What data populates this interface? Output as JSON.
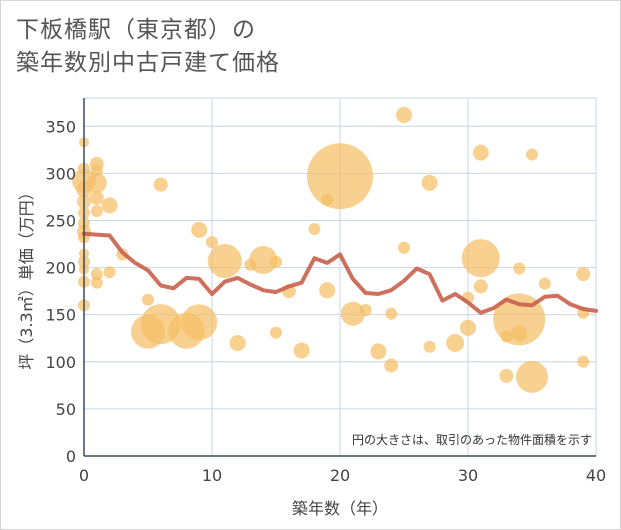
{
  "title_line1": "下板橋駅（東京都）の",
  "title_line2": "築年数別中古戸建て価格",
  "chart_data": {
    "type": "scatter",
    "xlabel": "築年数（年）",
    "ylabel": "坪（3.3㎡）単価（万円）",
    "xlim": [
      0,
      40
    ],
    "ylim": [
      0,
      380
    ],
    "xticks": [
      0,
      10,
      20,
      30,
      40
    ],
    "yticks": [
      0,
      50,
      100,
      150,
      200,
      250,
      300,
      350
    ],
    "annotation": "円の大きさは、取引のあった物件面積を示す",
    "bubble_color": "#f5be64",
    "line_color": "#c8614d",
    "bubbles": [
      {
        "x": 0,
        "y": 333,
        "r": 5
      },
      {
        "x": 0,
        "y": 305,
        "r": 6
      },
      {
        "x": 0,
        "y": 292,
        "r": 12
      },
      {
        "x": 0,
        "y": 283,
        "r": 8
      },
      {
        "x": 0,
        "y": 270,
        "r": 7
      },
      {
        "x": 0,
        "y": 258,
        "r": 6
      },
      {
        "x": 0,
        "y": 247,
        "r": 6
      },
      {
        "x": 0,
        "y": 238,
        "r": 7
      },
      {
        "x": 0,
        "y": 232,
        "r": 6
      },
      {
        "x": 0,
        "y": 215,
        "r": 5
      },
      {
        "x": 0,
        "y": 206,
        "r": 6
      },
      {
        "x": 0,
        "y": 198,
        "r": 5
      },
      {
        "x": 0,
        "y": 185,
        "r": 6
      },
      {
        "x": 0,
        "y": 160,
        "r": 6
      },
      {
        "x": 1,
        "y": 310,
        "r": 7
      },
      {
        "x": 1,
        "y": 303,
        "r": 6
      },
      {
        "x": 1,
        "y": 290,
        "r": 10
      },
      {
        "x": 1,
        "y": 274,
        "r": 7
      },
      {
        "x": 1,
        "y": 260,
        "r": 6
      },
      {
        "x": 1,
        "y": 193,
        "r": 6
      },
      {
        "x": 1,
        "y": 184,
        "r": 6
      },
      {
        "x": 2,
        "y": 266,
        "r": 8
      },
      {
        "x": 2,
        "y": 195,
        "r": 6
      },
      {
        "x": 3,
        "y": 214,
        "r": 6
      },
      {
        "x": 5,
        "y": 166,
        "r": 6
      },
      {
        "x": 5,
        "y": 132,
        "r": 17
      },
      {
        "x": 6,
        "y": 288,
        "r": 7
      },
      {
        "x": 6,
        "y": 140,
        "r": 20
      },
      {
        "x": 8,
        "y": 133,
        "r": 18
      },
      {
        "x": 9,
        "y": 240,
        "r": 8
      },
      {
        "x": 9,
        "y": 142,
        "r": 18
      },
      {
        "x": 10,
        "y": 227,
        "r": 6
      },
      {
        "x": 11,
        "y": 207,
        "r": 17
      },
      {
        "x": 12,
        "y": 120,
        "r": 8
      },
      {
        "x": 13,
        "y": 203,
        "r": 6
      },
      {
        "x": 14,
        "y": 208,
        "r": 14
      },
      {
        "x": 15,
        "y": 206,
        "r": 6
      },
      {
        "x": 15,
        "y": 131,
        "r": 6
      },
      {
        "x": 16,
        "y": 175,
        "r": 7
      },
      {
        "x": 17,
        "y": 112,
        "r": 8
      },
      {
        "x": 18,
        "y": 241,
        "r": 6
      },
      {
        "x": 19,
        "y": 272,
        "r": 6
      },
      {
        "x": 19,
        "y": 176,
        "r": 8
      },
      {
        "x": 20,
        "y": 297,
        "r": 33
      },
      {
        "x": 21,
        "y": 151,
        "r": 12
      },
      {
        "x": 22,
        "y": 155,
        "r": 6
      },
      {
        "x": 23,
        "y": 111,
        "r": 8
      },
      {
        "x": 24,
        "y": 96,
        "r": 7
      },
      {
        "x": 24,
        "y": 151,
        "r": 6
      },
      {
        "x": 25,
        "y": 362,
        "r": 8
      },
      {
        "x": 25,
        "y": 221,
        "r": 6
      },
      {
        "x": 27,
        "y": 290,
        "r": 8
      },
      {
        "x": 27,
        "y": 116,
        "r": 6
      },
      {
        "x": 29,
        "y": 120,
        "r": 9
      },
      {
        "x": 30,
        "y": 136,
        "r": 8
      },
      {
        "x": 30,
        "y": 168,
        "r": 6
      },
      {
        "x": 31,
        "y": 322,
        "r": 8
      },
      {
        "x": 31,
        "y": 210,
        "r": 19
      },
      {
        "x": 31,
        "y": 180,
        "r": 7
      },
      {
        "x": 33,
        "y": 85,
        "r": 7
      },
      {
        "x": 33,
        "y": 127,
        "r": 6
      },
      {
        "x": 34,
        "y": 145,
        "r": 26
      },
      {
        "x": 34,
        "y": 130,
        "r": 8
      },
      {
        "x": 34,
        "y": 199,
        "r": 6
      },
      {
        "x": 35,
        "y": 320,
        "r": 6
      },
      {
        "x": 35,
        "y": 84,
        "r": 16
      },
      {
        "x": 36,
        "y": 183,
        "r": 6
      },
      {
        "x": 39,
        "y": 193,
        "r": 7
      },
      {
        "x": 39,
        "y": 152,
        "r": 6
      },
      {
        "x": 39,
        "y": 100,
        "r": 6
      }
    ],
    "series": [
      {
        "name": "average",
        "x": [
          0,
          1,
          2,
          3,
          4,
          5,
          6,
          7,
          8,
          9,
          10,
          11,
          12,
          13,
          14,
          15,
          16,
          17,
          18,
          19,
          20,
          21,
          22,
          23,
          24,
          25,
          26,
          27,
          28,
          29,
          30,
          31,
          32,
          33,
          34,
          35,
          36,
          37,
          38,
          39,
          40
        ],
        "y": [
          236,
          235,
          234,
          216,
          205,
          197,
          181,
          178,
          189,
          188,
          172,
          185,
          189,
          182,
          176,
          174,
          180,
          184,
          210,
          205,
          214,
          188,
          173,
          172,
          176,
          186,
          199,
          193,
          165,
          172,
          163,
          152,
          157,
          166,
          161,
          160,
          169,
          170,
          161,
          156,
          154
        ]
      }
    ]
  }
}
